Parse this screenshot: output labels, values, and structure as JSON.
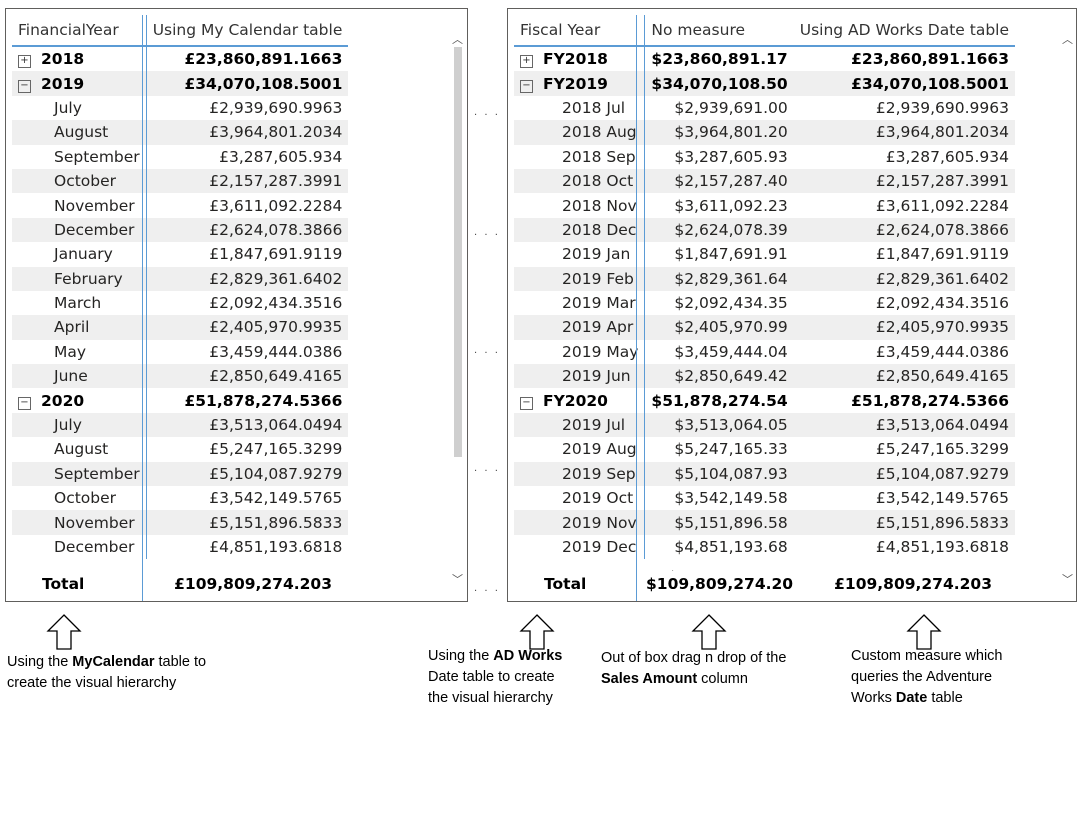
{
  "left": {
    "headers": [
      "FinancialYear",
      "Using My Calendar table"
    ],
    "rows": [
      {
        "type": "year",
        "expand": "+",
        "label": "2018",
        "v": "£23,860,891.1663"
      },
      {
        "type": "year",
        "expand": "-",
        "label": "2019",
        "v": "£34,070,108.5001"
      },
      {
        "type": "month",
        "label": "July",
        "v": "£2,939,690.9963"
      },
      {
        "type": "month",
        "label": "August",
        "v": "£3,964,801.2034"
      },
      {
        "type": "month",
        "label": "September",
        "v": "£3,287,605.934"
      },
      {
        "type": "month",
        "label": "October",
        "v": "£2,157,287.3991"
      },
      {
        "type": "month",
        "label": "November",
        "v": "£3,611,092.2284"
      },
      {
        "type": "month",
        "label": "December",
        "v": "£2,624,078.3866"
      },
      {
        "type": "month",
        "label": "January",
        "v": "£1,847,691.9119"
      },
      {
        "type": "month",
        "label": "February",
        "v": "£2,829,361.6402"
      },
      {
        "type": "month",
        "label": "March",
        "v": "£2,092,434.3516"
      },
      {
        "type": "month",
        "label": "April",
        "v": "£2,405,970.9935"
      },
      {
        "type": "month",
        "label": "May",
        "v": "£3,459,444.0386"
      },
      {
        "type": "month",
        "label": "June",
        "v": "£2,850,649.4165"
      },
      {
        "type": "year",
        "expand": "-",
        "label": "2020",
        "v": "£51,878,274.5366"
      },
      {
        "type": "month",
        "label": "July",
        "v": "£3,513,064.0494"
      },
      {
        "type": "month",
        "label": "August",
        "v": "£5,247,165.3299"
      },
      {
        "type": "month",
        "label": "September",
        "v": "£5,104,087.9279"
      },
      {
        "type": "month",
        "label": "October",
        "v": "£3,542,149.5765"
      },
      {
        "type": "month",
        "label": "November",
        "v": "£5,151,896.5833"
      },
      {
        "type": "month",
        "label": "December",
        "v": "£4,851,193.6818"
      }
    ],
    "total_label": "Total",
    "total_value": "£109,809,274.203"
  },
  "right": {
    "headers": [
      "Fiscal Year",
      "No measure",
      "Using AD Works Date table"
    ],
    "rows": [
      {
        "type": "year",
        "expand": "+",
        "label": "FY2018",
        "a": "$23,860,891.17",
        "b": "£23,860,891.1663"
      },
      {
        "type": "year",
        "expand": "-",
        "label": "FY2019",
        "a": "$34,070,108.50",
        "b": "£34,070,108.5001"
      },
      {
        "type": "month",
        "label": "2018 Jul",
        "a": "$2,939,691.00",
        "b": "£2,939,690.9963"
      },
      {
        "type": "month",
        "label": "2018 Aug",
        "a": "$3,964,801.20",
        "b": "£3,964,801.2034"
      },
      {
        "type": "month",
        "label": "2018 Sep",
        "a": "$3,287,605.93",
        "b": "£3,287,605.934"
      },
      {
        "type": "month",
        "label": "2018 Oct",
        "a": "$2,157,287.40",
        "b": "£2,157,287.3991"
      },
      {
        "type": "month",
        "label": "2018 Nov",
        "a": "$3,611,092.23",
        "b": "£3,611,092.2284"
      },
      {
        "type": "month",
        "label": "2018 Dec",
        "a": "$2,624,078.39",
        "b": "£2,624,078.3866"
      },
      {
        "type": "month",
        "label": "2019 Jan",
        "a": "$1,847,691.91",
        "b": "£1,847,691.9119"
      },
      {
        "type": "month",
        "label": "2019 Feb",
        "a": "$2,829,361.64",
        "b": "£2,829,361.6402"
      },
      {
        "type": "month",
        "label": "2019 Mar",
        "a": "$2,092,434.35",
        "b": "£2,092,434.3516"
      },
      {
        "type": "month",
        "label": "2019 Apr",
        "a": "$2,405,970.99",
        "b": "£2,405,970.9935"
      },
      {
        "type": "month",
        "label": "2019 May",
        "a": "$3,459,444.04",
        "b": "£3,459,444.0386"
      },
      {
        "type": "month",
        "label": "2019 Jun",
        "a": "$2,850,649.42",
        "b": "£2,850,649.4165"
      },
      {
        "type": "year",
        "expand": "-",
        "label": "FY2020",
        "a": "$51,878,274.54",
        "b": "£51,878,274.5366"
      },
      {
        "type": "month",
        "label": "2019 Jul",
        "a": "$3,513,064.05",
        "b": "£3,513,064.0494"
      },
      {
        "type": "month",
        "label": "2019 Aug",
        "a": "$5,247,165.33",
        "b": "£5,247,165.3299"
      },
      {
        "type": "month",
        "label": "2019 Sep",
        "a": "$5,104,087.93",
        "b": "£5,104,087.9279"
      },
      {
        "type": "month",
        "label": "2019 Oct",
        "a": "$3,542,149.58",
        "b": "£3,542,149.5765"
      },
      {
        "type": "month",
        "label": "2019 Nov",
        "a": "$5,151,896.58",
        "b": "£5,151,896.5833"
      },
      {
        "type": "month",
        "label": "2019 Dec",
        "a": "$4,851,193.68",
        "b": "£4,851,193.6818"
      }
    ],
    "total_label": "Total",
    "total_a": "$109,809,274.20",
    "total_b": "£109,809,274.203"
  },
  "annotations": {
    "a1": {
      "pre": "Using the ",
      "bold": "MyCalendar",
      "post": " table to create the visual hierarchy"
    },
    "a2": {
      "pre": "Using the ",
      "bold": "AD Works",
      "post": " Date table to create the visual hierarchy"
    },
    "a3": {
      "pre": "Out of box drag n drop of the ",
      "bold": "Sales Amount",
      "post": " column"
    },
    "a4": {
      "pre": "Custom measure which queries the Adventure Works ",
      "bold": "Date",
      "post": " table"
    }
  },
  "colors": {
    "header_underline": "#5b9bd5",
    "row_shade": "#efefef",
    "border": "#605e5c"
  }
}
